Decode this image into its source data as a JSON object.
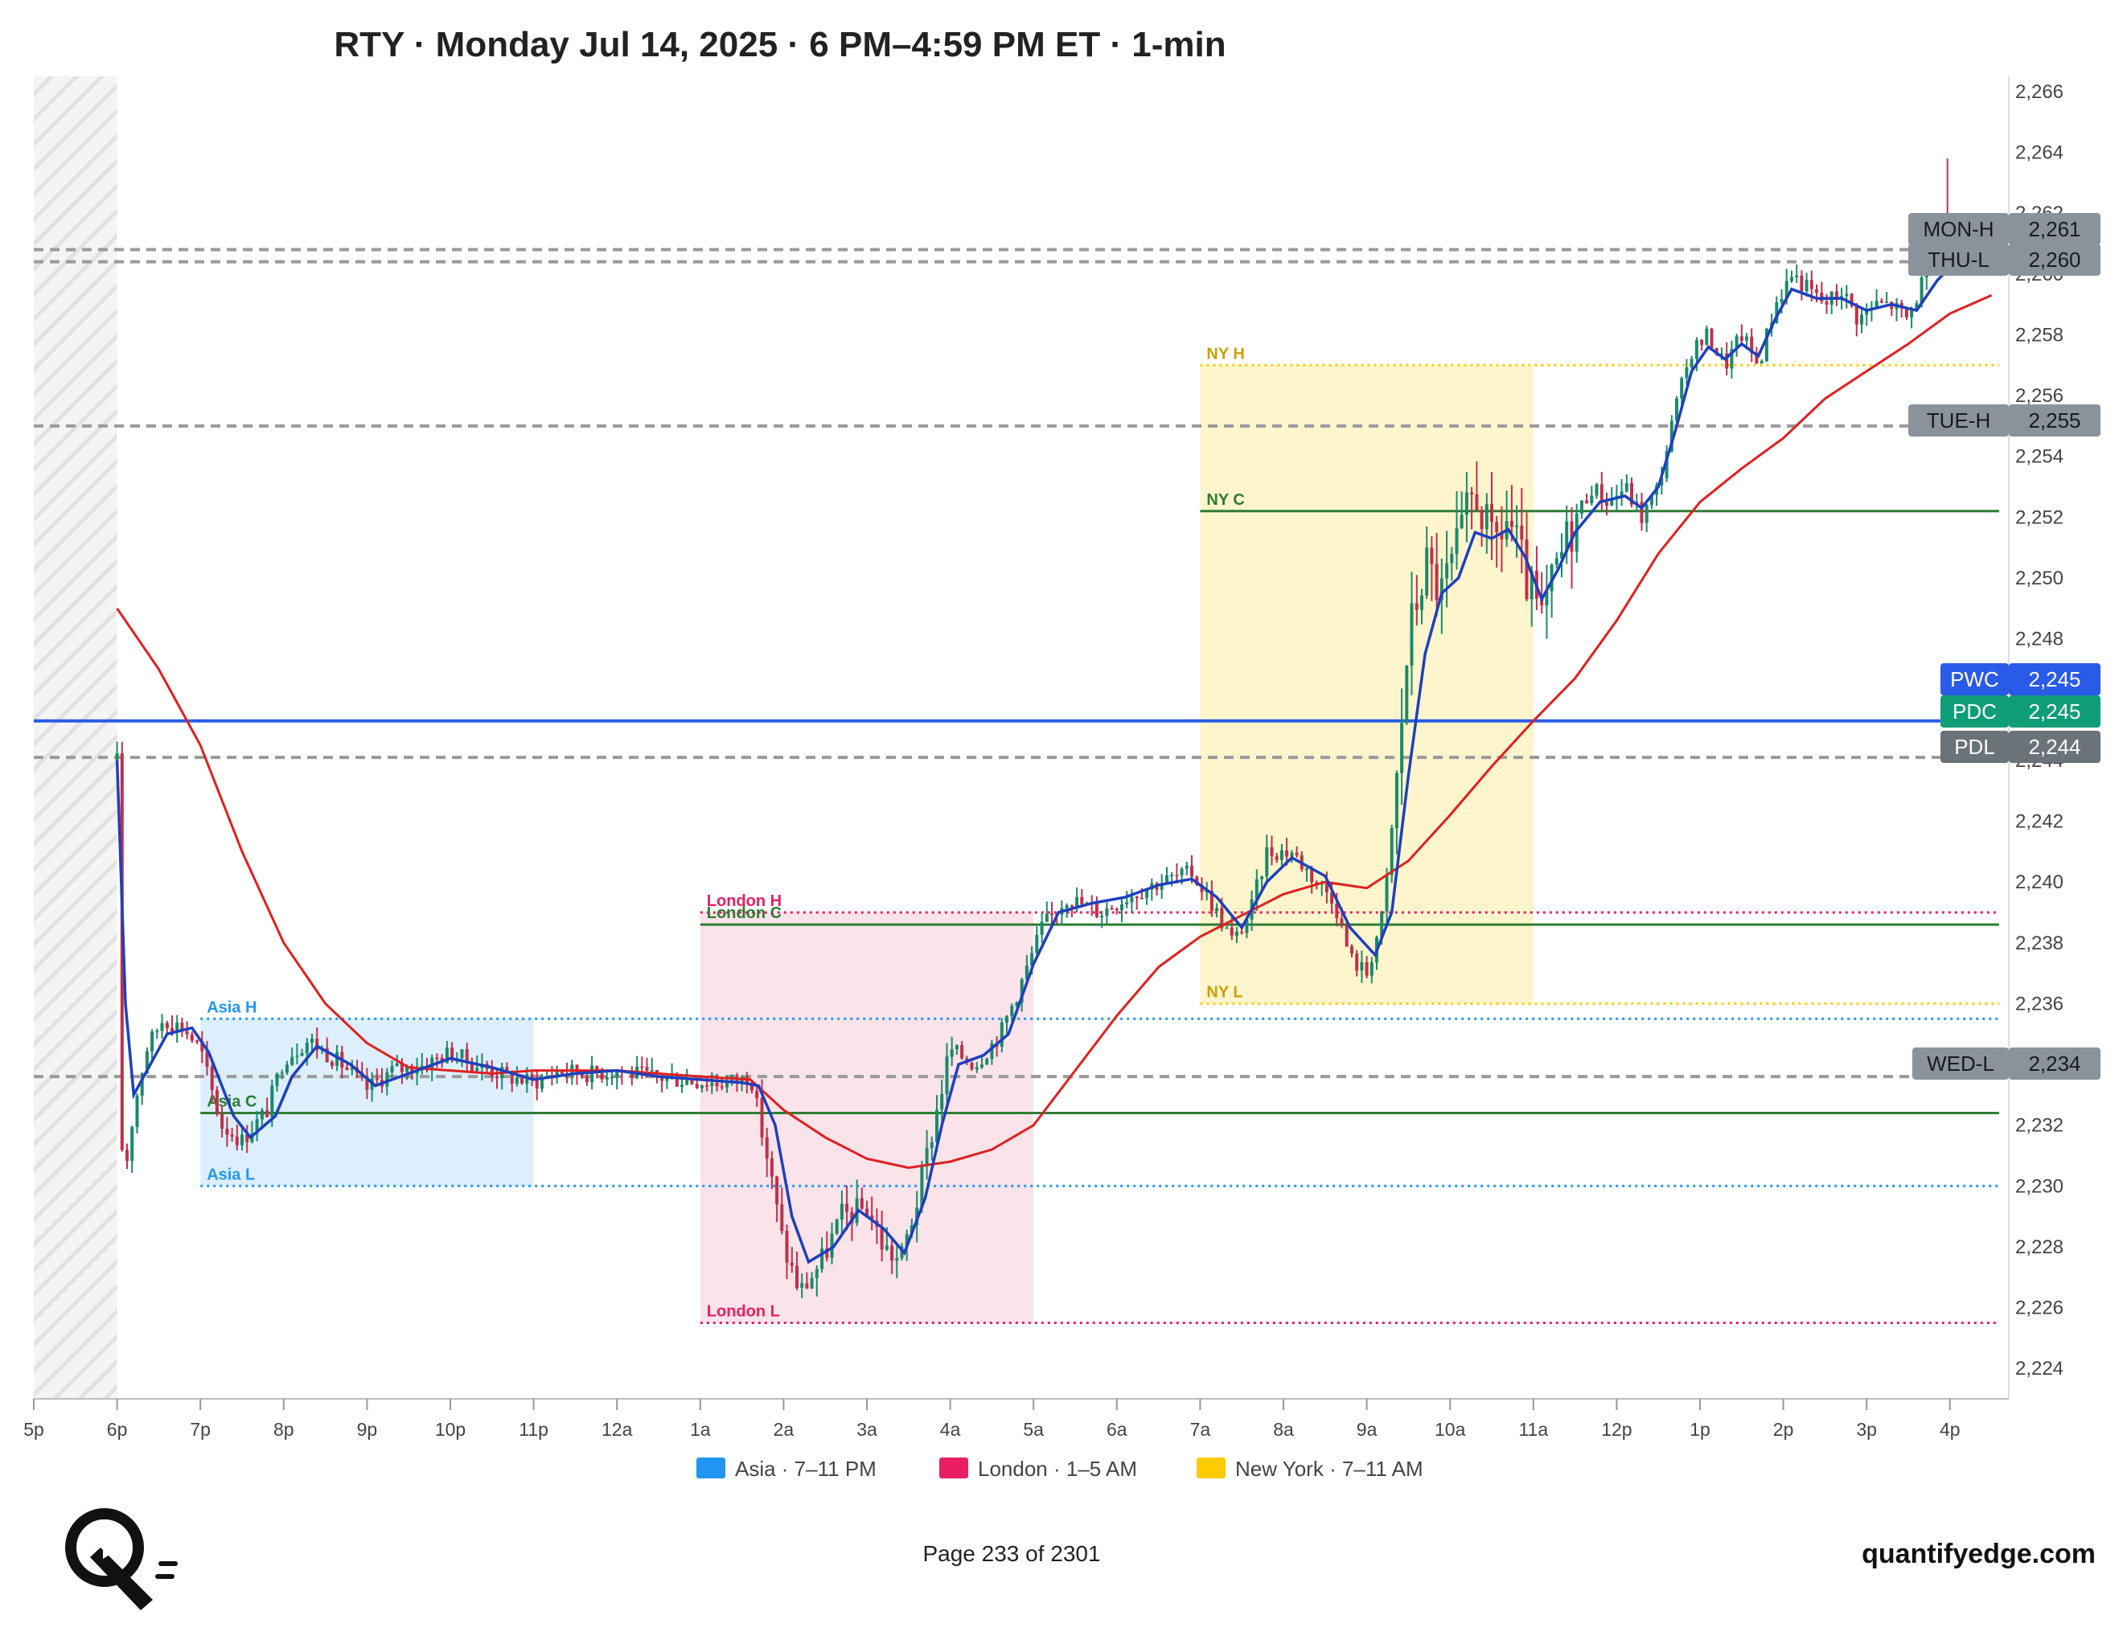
{
  "title": "RTY · Monday Jul 14, 2025 · 6 PM–4:59 PM ET · 1-min",
  "footer": {
    "page": "Page 233 of 2301",
    "brand": "quantifyedge.com"
  },
  "colors": {
    "asia": "#2196f3",
    "london": "#e91e63",
    "newyork": "#ffcc00",
    "ma_fast": "#1e3fbf",
    "ma_slow": "#e02020",
    "pwc": "#2a5be8",
    "pdc": "#0f9d78",
    "gray_tag": "#8a939b",
    "up": "#1a8a6a",
    "down": "#c0304a"
  },
  "chart_data": {
    "type": "candlestick",
    "y_range": [
      2223,
      2266.5
    ],
    "y_ticks": [
      "2,224",
      "2,226",
      "2,228",
      "2,230",
      "2,232",
      "2,234",
      "2,236",
      "2,238",
      "2,240",
      "2,242",
      "2,244",
      "2,246",
      "2,248",
      "2,250",
      "2,252",
      "2,254",
      "2,256",
      "2,258",
      "2,260",
      "2,262",
      "2,264",
      "2,266"
    ],
    "x_range_hours": [
      0,
      24
    ],
    "x_ticks": [
      {
        "label": "5p",
        "h": 0
      },
      {
        "label": "6p",
        "h": 1
      },
      {
        "label": "7p",
        "h": 2
      },
      {
        "label": "8p",
        "h": 3
      },
      {
        "label": "9p",
        "h": 4
      },
      {
        "label": "10p",
        "h": 5
      },
      {
        "label": "11p",
        "h": 6
      },
      {
        "label": "12a",
        "h": 7
      },
      {
        "label": "1a",
        "h": 8
      },
      {
        "label": "2a",
        "h": 9
      },
      {
        "label": "3a",
        "h": 10
      },
      {
        "label": "4a",
        "h": 11
      },
      {
        "label": "5a",
        "h": 12
      },
      {
        "label": "6a",
        "h": 13
      },
      {
        "label": "7a",
        "h": 14
      },
      {
        "label": "8a",
        "h": 15
      },
      {
        "label": "9a",
        "h": 16
      },
      {
        "label": "10a",
        "h": 17
      },
      {
        "label": "11a",
        "h": 18
      },
      {
        "label": "12p",
        "h": 19
      },
      {
        "label": "1p",
        "h": 20
      },
      {
        "label": "2p",
        "h": 21
      },
      {
        "label": "3p",
        "h": 22
      },
      {
        "label": "4p",
        "h": 23
      }
    ],
    "price_path": [
      [
        1.0,
        2244.0
      ],
      [
        1.02,
        2232.0
      ],
      [
        1.1,
        2230.5
      ],
      [
        1.2,
        2232.5
      ],
      [
        1.35,
        2234.5
      ],
      [
        1.55,
        2235.5
      ],
      [
        1.8,
        2235.2
      ],
      [
        2.0,
        2234.5
      ],
      [
        2.25,
        2232.0
      ],
      [
        2.5,
        2231.5
      ],
      [
        2.8,
        2232.5
      ],
      [
        3.0,
        2234.2
      ],
      [
        3.3,
        2234.8
      ],
      [
        3.7,
        2234.0
      ],
      [
        4.0,
        2233.2
      ],
      [
        4.3,
        2233.8
      ],
      [
        4.7,
        2234.0
      ],
      [
        5.0,
        2234.4
      ],
      [
        5.3,
        2234.0
      ],
      [
        5.7,
        2233.6
      ],
      [
        6.0,
        2233.4
      ],
      [
        6.3,
        2233.8
      ],
      [
        6.7,
        2233.7
      ],
      [
        7.0,
        2233.8
      ],
      [
        7.4,
        2233.6
      ],
      [
        7.8,
        2233.5
      ],
      [
        8.2,
        2233.4
      ],
      [
        8.5,
        2233.5
      ],
      [
        8.6,
        2233.7
      ],
      [
        8.8,
        2231.0
      ],
      [
        9.0,
        2228.0
      ],
      [
        9.2,
        2226.5
      ],
      [
        9.45,
        2227.5
      ],
      [
        9.7,
        2229.0
      ],
      [
        10.0,
        2229.3
      ],
      [
        10.2,
        2228.0
      ],
      [
        10.4,
        2227.5
      ],
      [
        10.6,
        2229.5
      ],
      [
        10.8,
        2232.0
      ],
      [
        11.0,
        2234.5
      ],
      [
        11.3,
        2234.0
      ],
      [
        11.6,
        2235.0
      ],
      [
        11.9,
        2237.0
      ],
      [
        12.1,
        2238.5
      ],
      [
        12.4,
        2239.5
      ],
      [
        12.8,
        2239.0
      ],
      [
        13.1,
        2239.5
      ],
      [
        13.5,
        2240.0
      ],
      [
        13.9,
        2240.3
      ],
      [
        14.1,
        2239.5
      ],
      [
        14.4,
        2238.0
      ],
      [
        14.6,
        2239.0
      ],
      [
        14.8,
        2241.0
      ],
      [
        15.1,
        2241.0
      ],
      [
        15.4,
        2240.0
      ],
      [
        15.6,
        2239.5
      ],
      [
        15.8,
        2237.5
      ],
      [
        16.0,
        2237.0
      ],
      [
        16.2,
        2239.0
      ],
      [
        16.35,
        2243.0
      ],
      [
        16.5,
        2248.0
      ],
      [
        16.7,
        2250.5
      ],
      [
        16.9,
        2249.5
      ],
      [
        17.1,
        2251.0
      ],
      [
        17.3,
        2253.0
      ],
      [
        17.5,
        2251.0
      ],
      [
        17.7,
        2252.0
      ],
      [
        17.9,
        2250.0
      ],
      [
        18.1,
        2248.5
      ],
      [
        18.3,
        2250.5
      ],
      [
        18.5,
        2252.0
      ],
      [
        18.7,
        2253.0
      ],
      [
        18.9,
        2252.5
      ],
      [
        19.1,
        2253.0
      ],
      [
        19.3,
        2252.0
      ],
      [
        19.5,
        2253.0
      ],
      [
        19.7,
        2255.5
      ],
      [
        19.9,
        2257.5
      ],
      [
        20.1,
        2258.0
      ],
      [
        20.3,
        2257.0
      ],
      [
        20.5,
        2258.0
      ],
      [
        20.7,
        2257.0
      ],
      [
        20.9,
        2259.0
      ],
      [
        21.1,
        2260.0
      ],
      [
        21.3,
        2259.5
      ],
      [
        21.5,
        2259.0
      ],
      [
        21.7,
        2259.5
      ],
      [
        21.9,
        2258.5
      ],
      [
        22.1,
        2259.0
      ],
      [
        22.3,
        2259.0
      ],
      [
        22.5,
        2258.5
      ],
      [
        22.7,
        2260.0
      ],
      [
        22.85,
        2260.5
      ],
      [
        22.95,
        2262.0
      ],
      [
        23.0,
        2260.5
      ]
    ],
    "ma_fast": [
      [
        1.0,
        2244.0
      ],
      [
        1.1,
        2236.0
      ],
      [
        1.2,
        2233.0
      ],
      [
        1.4,
        2234.0
      ],
      [
        1.6,
        2235.0
      ],
      [
        1.9,
        2235.2
      ],
      [
        2.1,
        2234.4
      ],
      [
        2.4,
        2232.3
      ],
      [
        2.6,
        2231.6
      ],
      [
        2.9,
        2232.3
      ],
      [
        3.1,
        2233.6
      ],
      [
        3.4,
        2234.6
      ],
      [
        3.8,
        2234.0
      ],
      [
        4.1,
        2233.3
      ],
      [
        4.5,
        2233.7
      ],
      [
        5.0,
        2234.2
      ],
      [
        5.5,
        2233.9
      ],
      [
        6.0,
        2233.5
      ],
      [
        6.5,
        2233.7
      ],
      [
        7.0,
        2233.8
      ],
      [
        7.5,
        2233.6
      ],
      [
        8.0,
        2233.5
      ],
      [
        8.5,
        2233.4
      ],
      [
        8.7,
        2233.3
      ],
      [
        8.9,
        2232.0
      ],
      [
        9.1,
        2229.0
      ],
      [
        9.3,
        2227.5
      ],
      [
        9.6,
        2228.0
      ],
      [
        9.9,
        2229.2
      ],
      [
        10.2,
        2228.6
      ],
      [
        10.45,
        2227.8
      ],
      [
        10.7,
        2229.6
      ],
      [
        10.9,
        2232.0
      ],
      [
        11.1,
        2234.0
      ],
      [
        11.4,
        2234.3
      ],
      [
        11.7,
        2235.0
      ],
      [
        12.0,
        2237.3
      ],
      [
        12.3,
        2239.0
      ],
      [
        12.7,
        2239.3
      ],
      [
        13.1,
        2239.5
      ],
      [
        13.5,
        2239.9
      ],
      [
        13.9,
        2240.1
      ],
      [
        14.2,
        2239.5
      ],
      [
        14.5,
        2238.5
      ],
      [
        14.8,
        2240.0
      ],
      [
        15.1,
        2240.8
      ],
      [
        15.5,
        2240.2
      ],
      [
        15.8,
        2238.5
      ],
      [
        16.1,
        2237.6
      ],
      [
        16.3,
        2239.0
      ],
      [
        16.5,
        2243.5
      ],
      [
        16.7,
        2247.5
      ],
      [
        16.9,
        2249.5
      ],
      [
        17.1,
        2250.0
      ],
      [
        17.3,
        2251.5
      ],
      [
        17.5,
        2251.3
      ],
      [
        17.7,
        2251.6
      ],
      [
        17.9,
        2250.7
      ],
      [
        18.1,
        2249.3
      ],
      [
        18.3,
        2250.3
      ],
      [
        18.5,
        2251.5
      ],
      [
        18.8,
        2252.5
      ],
      [
        19.1,
        2252.7
      ],
      [
        19.3,
        2252.3
      ],
      [
        19.5,
        2253.0
      ],
      [
        19.7,
        2254.8
      ],
      [
        19.9,
        2256.8
      ],
      [
        20.1,
        2257.6
      ],
      [
        20.3,
        2257.2
      ],
      [
        20.5,
        2257.7
      ],
      [
        20.7,
        2257.3
      ],
      [
        20.9,
        2258.5
      ],
      [
        21.1,
        2259.5
      ],
      [
        21.4,
        2259.2
      ],
      [
        21.7,
        2259.2
      ],
      [
        22.0,
        2258.8
      ],
      [
        22.3,
        2259.0
      ],
      [
        22.6,
        2258.8
      ],
      [
        22.85,
        2259.8
      ],
      [
        23.0,
        2260.2
      ]
    ],
    "ma_slow": [
      [
        1.0,
        2249.0
      ],
      [
        1.5,
        2247.0
      ],
      [
        2.0,
        2244.5
      ],
      [
        2.5,
        2241.0
      ],
      [
        3.0,
        2238.0
      ],
      [
        3.5,
        2236.0
      ],
      [
        4.0,
        2234.7
      ],
      [
        4.5,
        2233.9
      ],
      [
        5.0,
        2233.8
      ],
      [
        5.5,
        2233.7
      ],
      [
        6.0,
        2233.8
      ],
      [
        7.0,
        2233.8
      ],
      [
        8.0,
        2233.6
      ],
      [
        8.6,
        2233.5
      ],
      [
        9.0,
        2232.5
      ],
      [
        9.5,
        2231.6
      ],
      [
        10.0,
        2230.9
      ],
      [
        10.5,
        2230.6
      ],
      [
        11.0,
        2230.8
      ],
      [
        11.5,
        2231.2
      ],
      [
        12.0,
        2232.0
      ],
      [
        12.5,
        2233.8
      ],
      [
        13.0,
        2235.6
      ],
      [
        13.5,
        2237.2
      ],
      [
        14.0,
        2238.2
      ],
      [
        14.5,
        2238.9
      ],
      [
        15.0,
        2239.6
      ],
      [
        15.5,
        2240.0
      ],
      [
        16.0,
        2239.8
      ],
      [
        16.5,
        2240.7
      ],
      [
        17.0,
        2242.2
      ],
      [
        17.5,
        2243.8
      ],
      [
        18.0,
        2245.3
      ],
      [
        18.5,
        2246.7
      ],
      [
        19.0,
        2248.6
      ],
      [
        19.5,
        2250.8
      ],
      [
        20.0,
        2252.5
      ],
      [
        20.5,
        2253.6
      ],
      [
        21.0,
        2254.6
      ],
      [
        21.5,
        2255.9
      ],
      [
        22.0,
        2256.8
      ],
      [
        22.5,
        2257.7
      ],
      [
        23.0,
        2258.7
      ],
      [
        23.5,
        2259.3
      ]
    ],
    "sessions": [
      {
        "name": "Asia",
        "start": 2,
        "end": 6,
        "hi": 2235.5,
        "lo": 2230.0,
        "close": 2232.4,
        "labels": {
          "high": "Asia H",
          "low": "Asia L",
          "close": "Asia C"
        }
      },
      {
        "name": "London",
        "start": 8,
        "end": 12,
        "hi": 2239.0,
        "lo": 2225.5,
        "close": 2238.6,
        "labels": {
          "high": "London H",
          "low": "London L",
          "close": "London C"
        }
      },
      {
        "name": "New York",
        "start": 14,
        "end": 18,
        "hi": 2257.0,
        "lo": 2236.0,
        "close": 2252.2,
        "labels": {
          "high": "NY H",
          "low": "NY L",
          "close": "NY C"
        }
      }
    ],
    "levels": [
      {
        "label": "MON-H",
        "value": "2,261",
        "y": 2260.8,
        "style": "gray"
      },
      {
        "label": "THU-L",
        "value": "2,260",
        "y": 2260.4,
        "style": "gray"
      },
      {
        "label": "TUE-H",
        "value": "2,255",
        "y": 2255.0,
        "style": "gray"
      },
      {
        "label": "PWC",
        "value": "2,245",
        "y": 2245.3,
        "style": "pwc"
      },
      {
        "label": "PDC",
        "value": "2,245",
        "y": 2245.3,
        "style": "pdc"
      },
      {
        "label": "PDL",
        "value": "2,244",
        "y": 2244.1,
        "style": "gray"
      },
      {
        "label": "WED-L",
        "value": "2,234",
        "y": 2233.6,
        "style": "gray"
      }
    ],
    "legend": [
      {
        "label": "Asia · 7–11 PM",
        "color": "#2196f3"
      },
      {
        "label": "London · 1–5 AM",
        "color": "#e91e63"
      },
      {
        "label": "New York · 7–11 AM",
        "color": "#ffcc00"
      }
    ]
  }
}
